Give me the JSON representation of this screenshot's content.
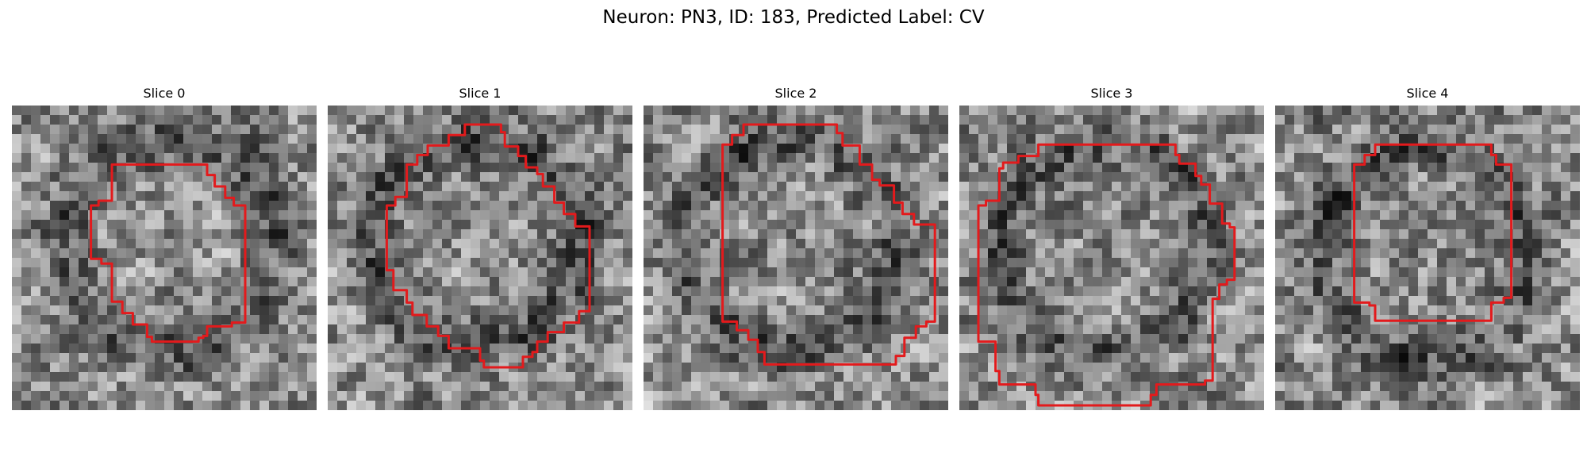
{
  "figure": {
    "title": "Neuron: PN3, ID: 183, Predicted Label: CV"
  },
  "panels": [
    {
      "title": "Slice 0",
      "seed": 11
    },
    {
      "title": "Slice 1",
      "seed": 23
    },
    {
      "title": "Slice 2",
      "seed": 37
    },
    {
      "title": "Slice 3",
      "seed": 51
    },
    {
      "title": "Slice 4",
      "seed": 67
    }
  ],
  "colors": {
    "contour": "#e31a1c",
    "background": "#ffffff",
    "text": "#000000"
  },
  "image_style": {
    "colormap": "gray",
    "grid_size": 32
  }
}
